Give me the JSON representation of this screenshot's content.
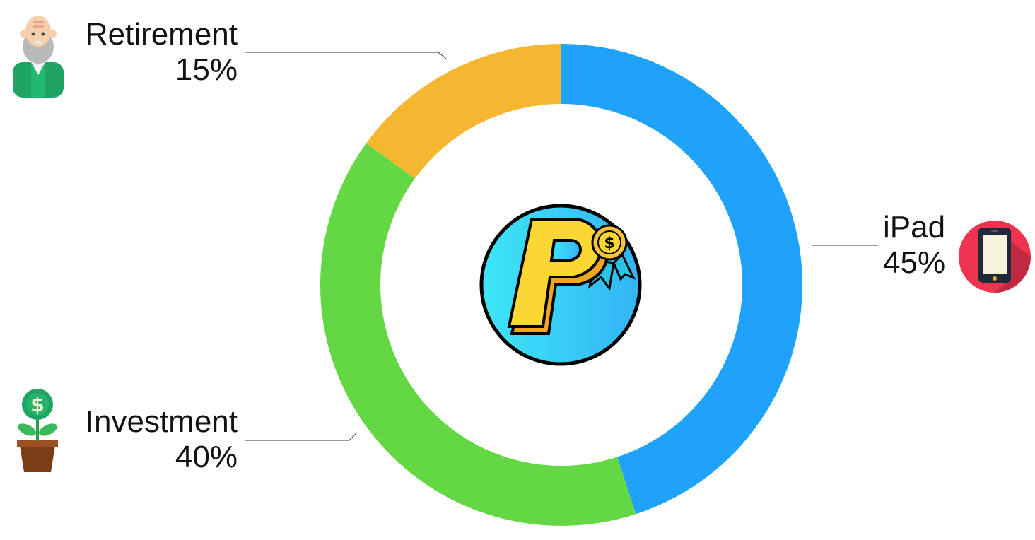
{
  "chart_data": {
    "type": "pie",
    "style": "donut",
    "categories": [
      "iPad",
      "Investment",
      "Retirement"
    ],
    "values": [
      45,
      40,
      15
    ],
    "labels": [
      "45%",
      "40%",
      "15%"
    ],
    "colors": [
      "#1FA3FA",
      "#64D744",
      "#F5B72F"
    ],
    "legend": "none",
    "center_icon": "paypal-medal-icon",
    "label_icons": [
      "tablet-icon",
      "money-plant-icon",
      "elderly-man-icon"
    ]
  }
}
